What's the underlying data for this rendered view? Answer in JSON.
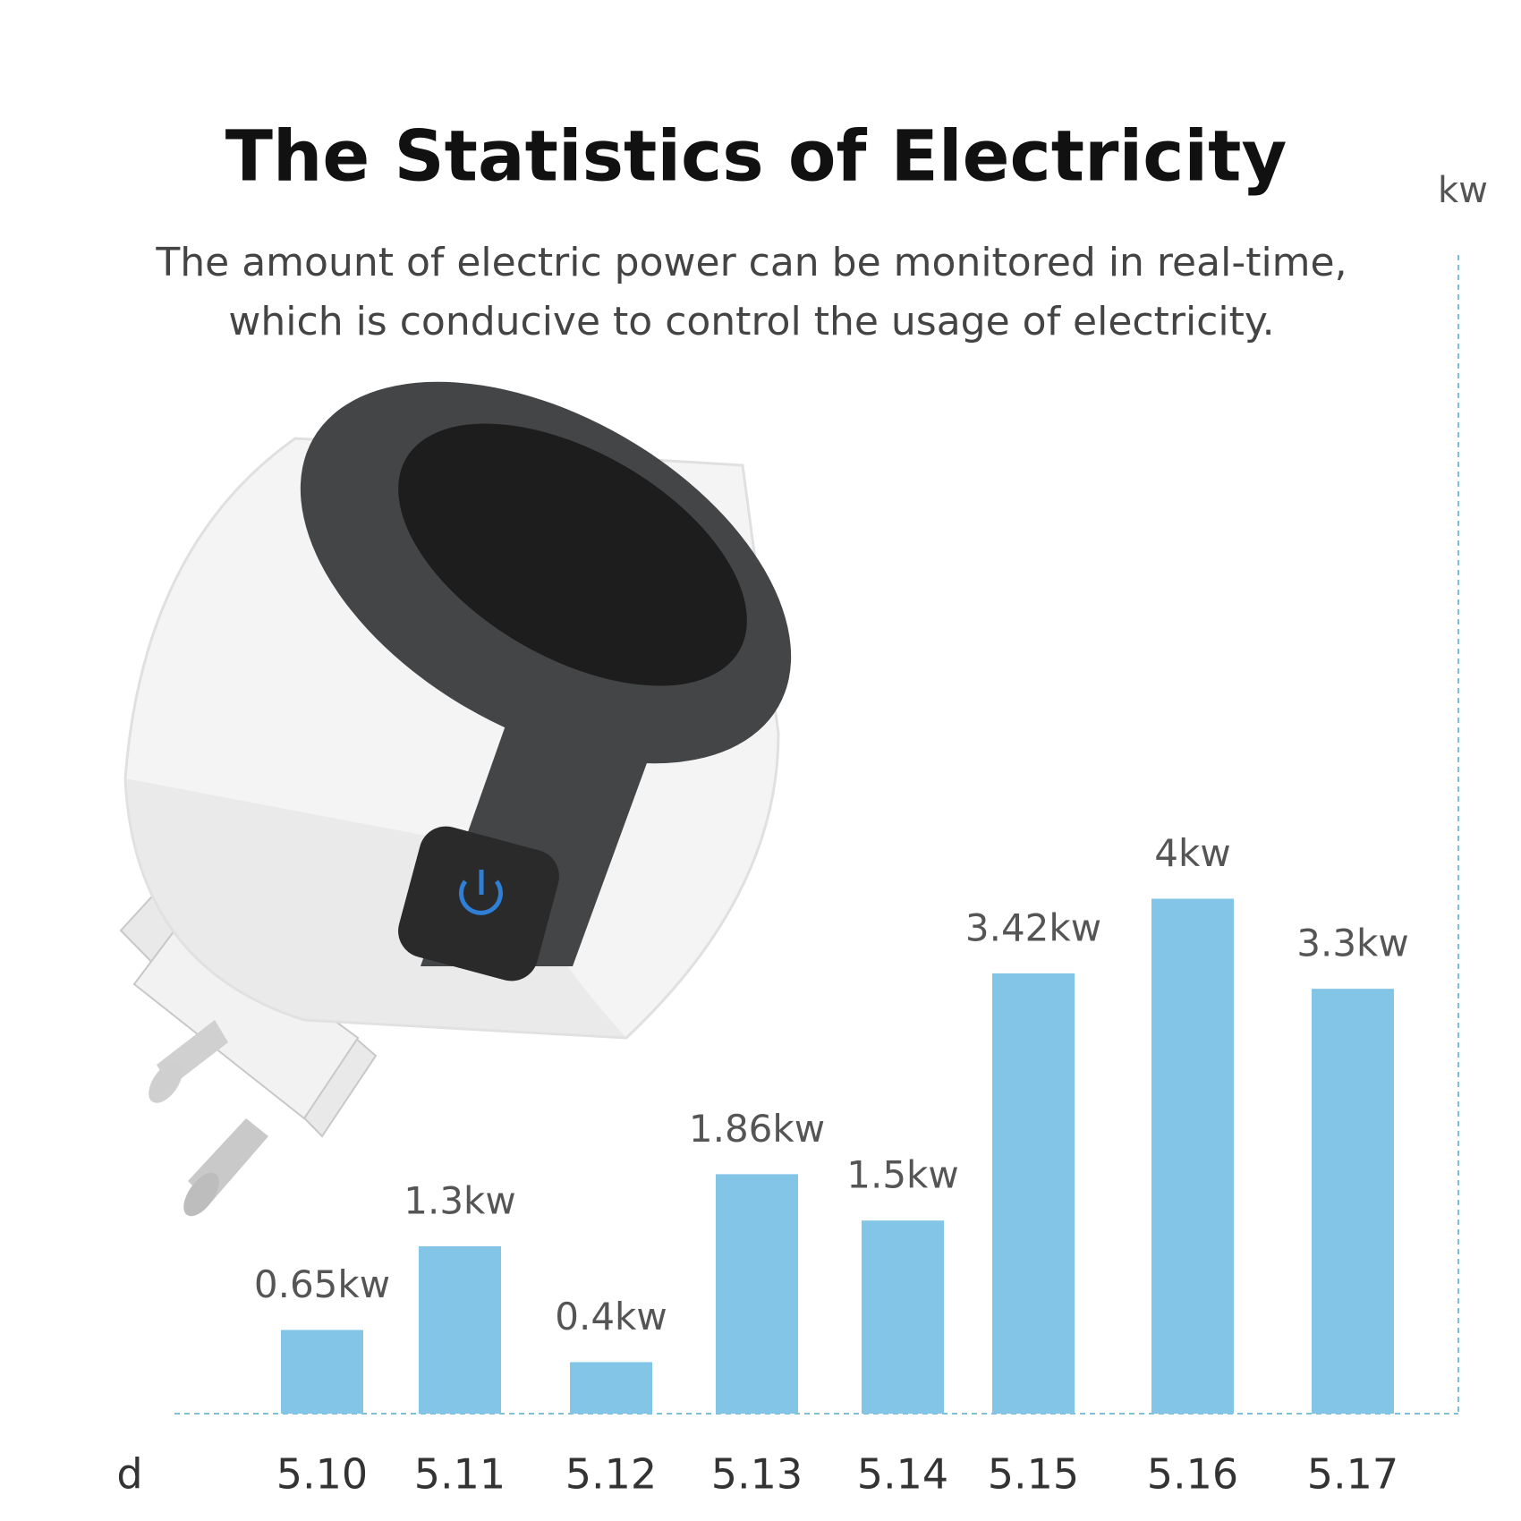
{
  "chart_data": {
    "type": "bar",
    "title": "The Statistics of Electricity",
    "subtitle": [
      "The amount of electric power can be monitored in real-time,",
      "which is conducive to control the usage of electricity."
    ],
    "y_label": "kw",
    "x_label": "d",
    "categories": [
      "5.10",
      "5.11",
      "5.12",
      "5.13",
      "5.14",
      "5.15",
      "5.16",
      "5.17"
    ],
    "values": [
      0.65,
      1.3,
      0.4,
      1.86,
      1.5,
      3.42,
      4,
      3.3
    ],
    "value_labels": [
      "0.65kw",
      "1.3kw",
      "0.4kw",
      "1.86kw",
      "1.5kw",
      "3.42kw",
      "4kw",
      "3.3kw"
    ],
    "color": "#82c5e6",
    "ylim": [
      0,
      9
    ]
  }
}
